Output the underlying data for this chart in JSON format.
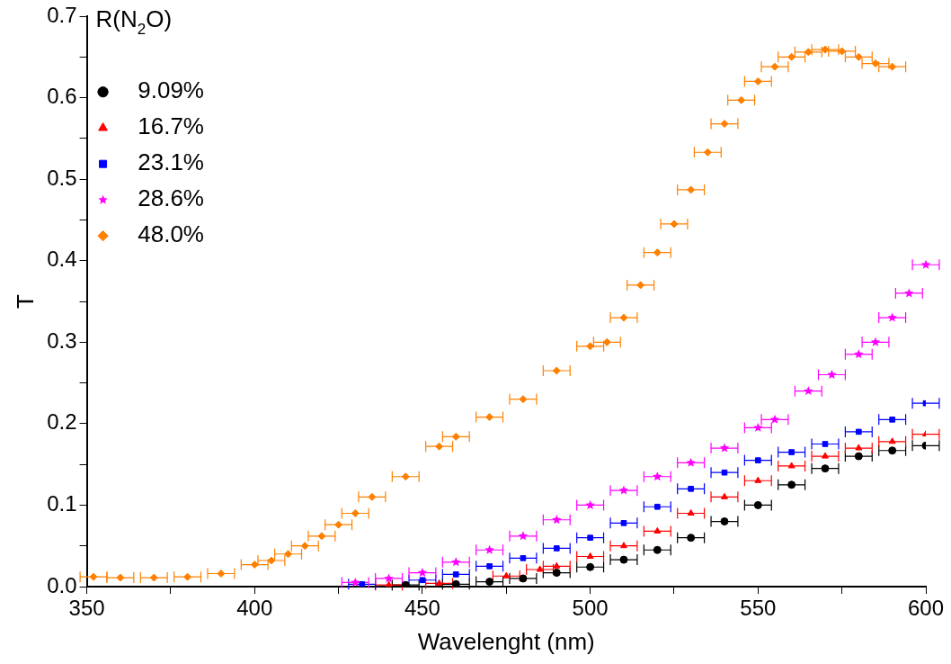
{
  "chart_data": {
    "type": "scatter",
    "xlabel": "Wavelenght (nm)",
    "ylabel": "T",
    "legend_title": "R(N$_{2}$O)",
    "legend": "top left",
    "xlim": [
      350,
      600
    ],
    "ylim": [
      0,
      0.7
    ],
    "xticks": [
      350,
      {
        "value": 375,
        "label": null
      },
      400,
      {
        "value": 425,
        "label": null
      },
      450,
      {
        "value": 475,
        "label": null
      },
      500,
      {
        "value": 525,
        "label": null
      },
      550,
      {
        "value": 575,
        "label": null
      },
      600
    ],
    "yticks": [
      {
        "value": 0,
        "label": "0.0"
      },
      {
        "value": 0.05,
        "label": null
      },
      0.1,
      {
        "value": 0.15,
        "label": null
      },
      0.2,
      {
        "value": 0.25,
        "label": null
      },
      0.3,
      {
        "value": 0.35,
        "label": null
      },
      0.4,
      {
        "value": 0.45,
        "label": null
      },
      0.5,
      {
        "value": 0.55,
        "label": null
      },
      0.6,
      {
        "value": 0.65,
        "label": null
      },
      0.7
    ],
    "series": [
      {
        "name": "9.09%",
        "color": "#000000",
        "marker": "circle",
        "x": [
          445,
          460,
          470,
          480,
          490,
          500,
          510,
          520,
          530,
          540,
          550,
          560,
          570,
          580,
          590,
          600
        ],
        "values": [
          0.002,
          0.003,
          0.006,
          0.01,
          0.017,
          0.024,
          0.033,
          0.045,
          0.06,
          0.08,
          0.1,
          0.125,
          0.145,
          0.16,
          0.167,
          0.173
        ],
        "xerrors": [
          4,
          4,
          4,
          4,
          4,
          4,
          4,
          4,
          4,
          4,
          4,
          4,
          4,
          4,
          4,
          4
        ]
      },
      {
        "name": "16.7%",
        "color": "#ff0000",
        "marker": "triangle",
        "x": [
          440,
          455,
          475,
          485,
          490,
          500,
          510,
          520,
          530,
          540,
          550,
          560,
          570,
          580,
          590,
          600
        ],
        "values": [
          0.002,
          0.004,
          0.013,
          0.021,
          0.025,
          0.037,
          0.05,
          0.068,
          0.09,
          0.11,
          0.13,
          0.148,
          0.16,
          0.17,
          0.178,
          0.187
        ],
        "xerrors": [
          4,
          4,
          4,
          4,
          4,
          4,
          4,
          4,
          4,
          4,
          4,
          4,
          4,
          4,
          4,
          4
        ]
      },
      {
        "name": "23.1%",
        "color": "#0000ff",
        "marker": "square",
        "x": [
          432,
          450,
          460,
          470,
          480,
          490,
          500,
          510,
          520,
          530,
          540,
          550,
          560,
          570,
          580,
          590,
          600
        ],
        "values": [
          0.003,
          0.008,
          0.015,
          0.025,
          0.035,
          0.047,
          0.06,
          0.078,
          0.098,
          0.12,
          0.14,
          0.155,
          0.165,
          0.175,
          0.19,
          0.205,
          0.225
        ],
        "xerrors": [
          4,
          4,
          4,
          4,
          4,
          4,
          4,
          4,
          4,
          4,
          4,
          4,
          4,
          4,
          4,
          4,
          4
        ]
      },
      {
        "name": "28.6%",
        "color": "#ff00ff",
        "marker": "star",
        "x": [
          430,
          440,
          450,
          460,
          470,
          480,
          490,
          500,
          510,
          520,
          530,
          540,
          550,
          555,
          565,
          572,
          580,
          585,
          590,
          595,
          600
        ],
        "values": [
          0.005,
          0.01,
          0.017,
          0.03,
          0.045,
          0.062,
          0.082,
          0.1,
          0.118,
          0.135,
          0.152,
          0.17,
          0.195,
          0.205,
          0.24,
          0.26,
          0.285,
          0.3,
          0.33,
          0.36,
          0.395
        ],
        "xerrors": [
          4,
          4,
          4,
          4,
          4,
          4,
          4,
          4,
          4,
          4,
          4,
          4,
          4,
          4,
          4,
          4,
          4,
          4,
          4,
          4,
          4
        ]
      },
      {
        "name": "48.0%",
        "color": "#ff8000",
        "marker": "diamond",
        "x": [
          352,
          360,
          370,
          380,
          390,
          400,
          405,
          410,
          415,
          420,
          425,
          430,
          435,
          445,
          455,
          460,
          470,
          480,
          490,
          500,
          505,
          510,
          515,
          520,
          525,
          530,
          535,
          540,
          545,
          550,
          555,
          560,
          565,
          570,
          575,
          580,
          585,
          590
        ],
        "values": [
          0.012,
          0.011,
          0.011,
          0.012,
          0.016,
          0.027,
          0.032,
          0.04,
          0.05,
          0.062,
          0.076,
          0.09,
          0.11,
          0.135,
          0.172,
          0.184,
          0.208,
          0.23,
          0.265,
          0.295,
          0.3,
          0.33,
          0.37,
          0.41,
          0.445,
          0.487,
          0.533,
          0.568,
          0.597,
          0.62,
          0.638,
          0.65,
          0.656,
          0.659,
          0.657,
          0.65,
          0.642,
          0.638
        ],
        "xerrors": [
          4,
          4,
          4,
          4,
          4,
          4,
          4,
          4,
          4,
          4,
          4,
          4,
          4,
          4,
          4,
          4,
          4,
          4,
          4,
          4,
          4,
          4,
          4,
          4,
          4,
          4,
          4,
          4,
          4,
          4,
          4,
          4,
          4,
          4,
          4,
          4,
          4,
          4
        ]
      }
    ]
  }
}
